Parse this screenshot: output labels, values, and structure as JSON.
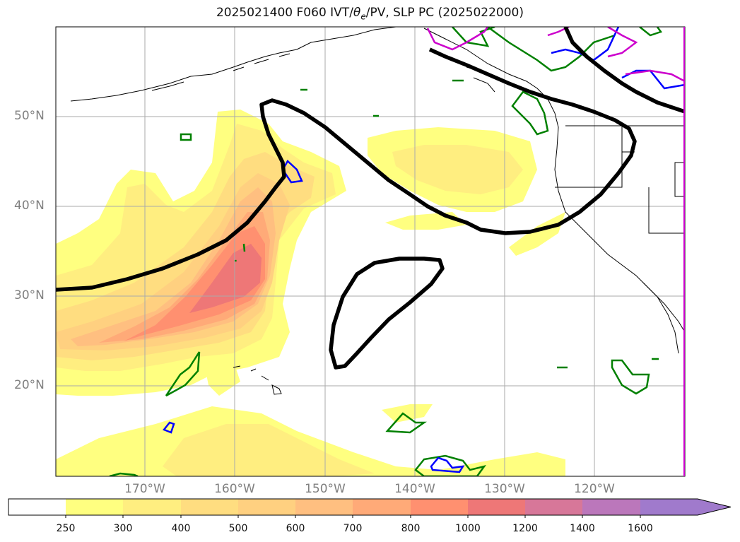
{
  "title_main": "2025021400 F060 IVT/",
  "title_theta": "θ",
  "title_sub": "e",
  "title_rest": "/PV, SLP PC (2025022000)",
  "lat_labels": [
    "50°N",
    "40°N",
    "30°N",
    "20°N"
  ],
  "lon_labels": [
    "170°W",
    "160°W",
    "150°W",
    "140°W",
    "130°W",
    "120°W"
  ],
  "colorbar": {
    "ticks": [
      "250",
      "300",
      "400",
      "500",
      "600",
      "700",
      "800",
      "1000",
      "1200",
      "1400",
      "1600"
    ],
    "colors": [
      "#ffffff",
      "#ffff80",
      "#ffee80",
      "#ffdd80",
      "#ffd080",
      "#ffbf80",
      "#ffaa78",
      "#ff9070",
      "#ee7777",
      "#d77799",
      "#bb77bb",
      "#a07acc"
    ],
    "extend": "max"
  },
  "colors": {
    "slp_contour": "#000000",
    "pv_green": "#008000",
    "pv_blue": "#0000ff",
    "pv_magenta": "#cc00cc",
    "grid": "#aaaaaa",
    "coast": "#000000"
  }
}
